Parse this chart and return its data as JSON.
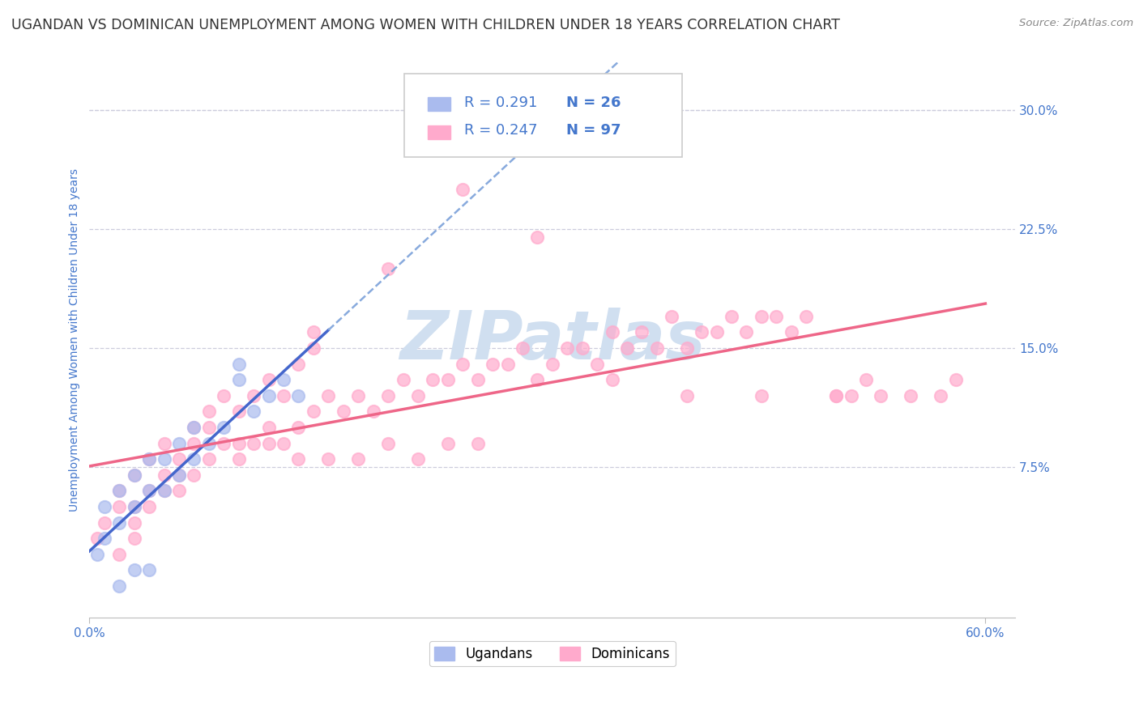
{
  "title": "UGANDAN VS DOMINICAN UNEMPLOYMENT AMONG WOMEN WITH CHILDREN UNDER 18 YEARS CORRELATION CHART",
  "source": "Source: ZipAtlas.com",
  "ylabel": "Unemployment Among Women with Children Under 18 years",
  "xlim": [
    0.0,
    0.62
  ],
  "ylim": [
    -0.02,
    0.33
  ],
  "plot_xlim": [
    0.0,
    0.6
  ],
  "plot_ylim": [
    0.0,
    0.3
  ],
  "xtick_positions": [
    0.0,
    0.6
  ],
  "xtick_labels": [
    "0.0%",
    "60.0%"
  ],
  "yticks_right": [
    0.075,
    0.15,
    0.225,
    0.3
  ],
  "ytick_labels_right": [
    "7.5%",
    "15.0%",
    "22.5%",
    "30.0%"
  ],
  "watermark": "ZIPatlas",
  "legend_r1": "R = 0.291",
  "legend_n1": "N = 26",
  "legend_r2": "R = 0.247",
  "legend_n2": "N = 97",
  "ugandan_color": "#aabbee",
  "dominican_color": "#ffaacc",
  "trend_ugandan_solid_color": "#4466cc",
  "trend_ugandan_dash_color": "#88aadd",
  "trend_dominican_color": "#ee6688",
  "background_color": "#ffffff",
  "grid_color": "#ccccdd",
  "axis_color": "#4477cc",
  "title_color": "#333333",
  "title_fontsize": 12.5,
  "axis_label_fontsize": 10,
  "tick_fontsize": 11,
  "legend_fontsize": 13,
  "watermark_color": "#d0dff0",
  "watermark_fontsize": 60,
  "ugandan_x": [
    0.005,
    0.01,
    0.01,
    0.02,
    0.02,
    0.03,
    0.03,
    0.04,
    0.04,
    0.05,
    0.05,
    0.06,
    0.06,
    0.07,
    0.07,
    0.08,
    0.09,
    0.1,
    0.1,
    0.11,
    0.12,
    0.13,
    0.14,
    0.02,
    0.03,
    0.04
  ],
  "ugandan_y": [
    0.02,
    0.03,
    0.05,
    0.04,
    0.06,
    0.05,
    0.07,
    0.06,
    0.08,
    0.06,
    0.08,
    0.07,
    0.09,
    0.08,
    0.1,
    0.09,
    0.1,
    0.13,
    0.14,
    0.11,
    0.12,
    0.13,
    0.12,
    0.0,
    0.01,
    0.01
  ],
  "dominican_x": [
    0.005,
    0.01,
    0.02,
    0.02,
    0.03,
    0.03,
    0.04,
    0.04,
    0.05,
    0.05,
    0.06,
    0.06,
    0.07,
    0.07,
    0.08,
    0.08,
    0.09,
    0.09,
    0.1,
    0.1,
    0.11,
    0.11,
    0.12,
    0.12,
    0.13,
    0.13,
    0.14,
    0.14,
    0.15,
    0.15,
    0.16,
    0.17,
    0.18,
    0.19,
    0.2,
    0.21,
    0.22,
    0.23,
    0.24,
    0.25,
    0.26,
    0.27,
    0.28,
    0.29,
    0.3,
    0.31,
    0.32,
    0.33,
    0.34,
    0.35,
    0.36,
    0.37,
    0.38,
    0.39,
    0.4,
    0.41,
    0.42,
    0.43,
    0.44,
    0.45,
    0.46,
    0.47,
    0.48,
    0.5,
    0.51,
    0.52,
    0.53,
    0.55,
    0.57,
    0.58,
    0.03,
    0.04,
    0.05,
    0.06,
    0.07,
    0.08,
    0.02,
    0.03,
    0.15,
    0.2,
    0.25,
    0.3,
    0.35,
    0.4,
    0.45,
    0.5,
    0.1,
    0.12,
    0.14,
    0.16,
    0.18,
    0.2,
    0.22,
    0.24,
    0.26
  ],
  "dominican_y": [
    0.03,
    0.04,
    0.05,
    0.06,
    0.05,
    0.07,
    0.06,
    0.08,
    0.07,
    0.09,
    0.06,
    0.08,
    0.07,
    0.1,
    0.08,
    0.11,
    0.09,
    0.12,
    0.08,
    0.11,
    0.09,
    0.12,
    0.1,
    0.13,
    0.09,
    0.12,
    0.1,
    0.14,
    0.11,
    0.15,
    0.12,
    0.11,
    0.12,
    0.11,
    0.12,
    0.13,
    0.12,
    0.13,
    0.13,
    0.14,
    0.13,
    0.14,
    0.14,
    0.15,
    0.13,
    0.14,
    0.15,
    0.15,
    0.14,
    0.16,
    0.15,
    0.16,
    0.15,
    0.17,
    0.15,
    0.16,
    0.16,
    0.17,
    0.16,
    0.17,
    0.17,
    0.16,
    0.17,
    0.12,
    0.12,
    0.13,
    0.12,
    0.12,
    0.12,
    0.13,
    0.04,
    0.05,
    0.06,
    0.07,
    0.09,
    0.1,
    0.02,
    0.03,
    0.16,
    0.2,
    0.25,
    0.22,
    0.13,
    0.12,
    0.12,
    0.12,
    0.09,
    0.09,
    0.08,
    0.08,
    0.08,
    0.09,
    0.08,
    0.09,
    0.09
  ]
}
